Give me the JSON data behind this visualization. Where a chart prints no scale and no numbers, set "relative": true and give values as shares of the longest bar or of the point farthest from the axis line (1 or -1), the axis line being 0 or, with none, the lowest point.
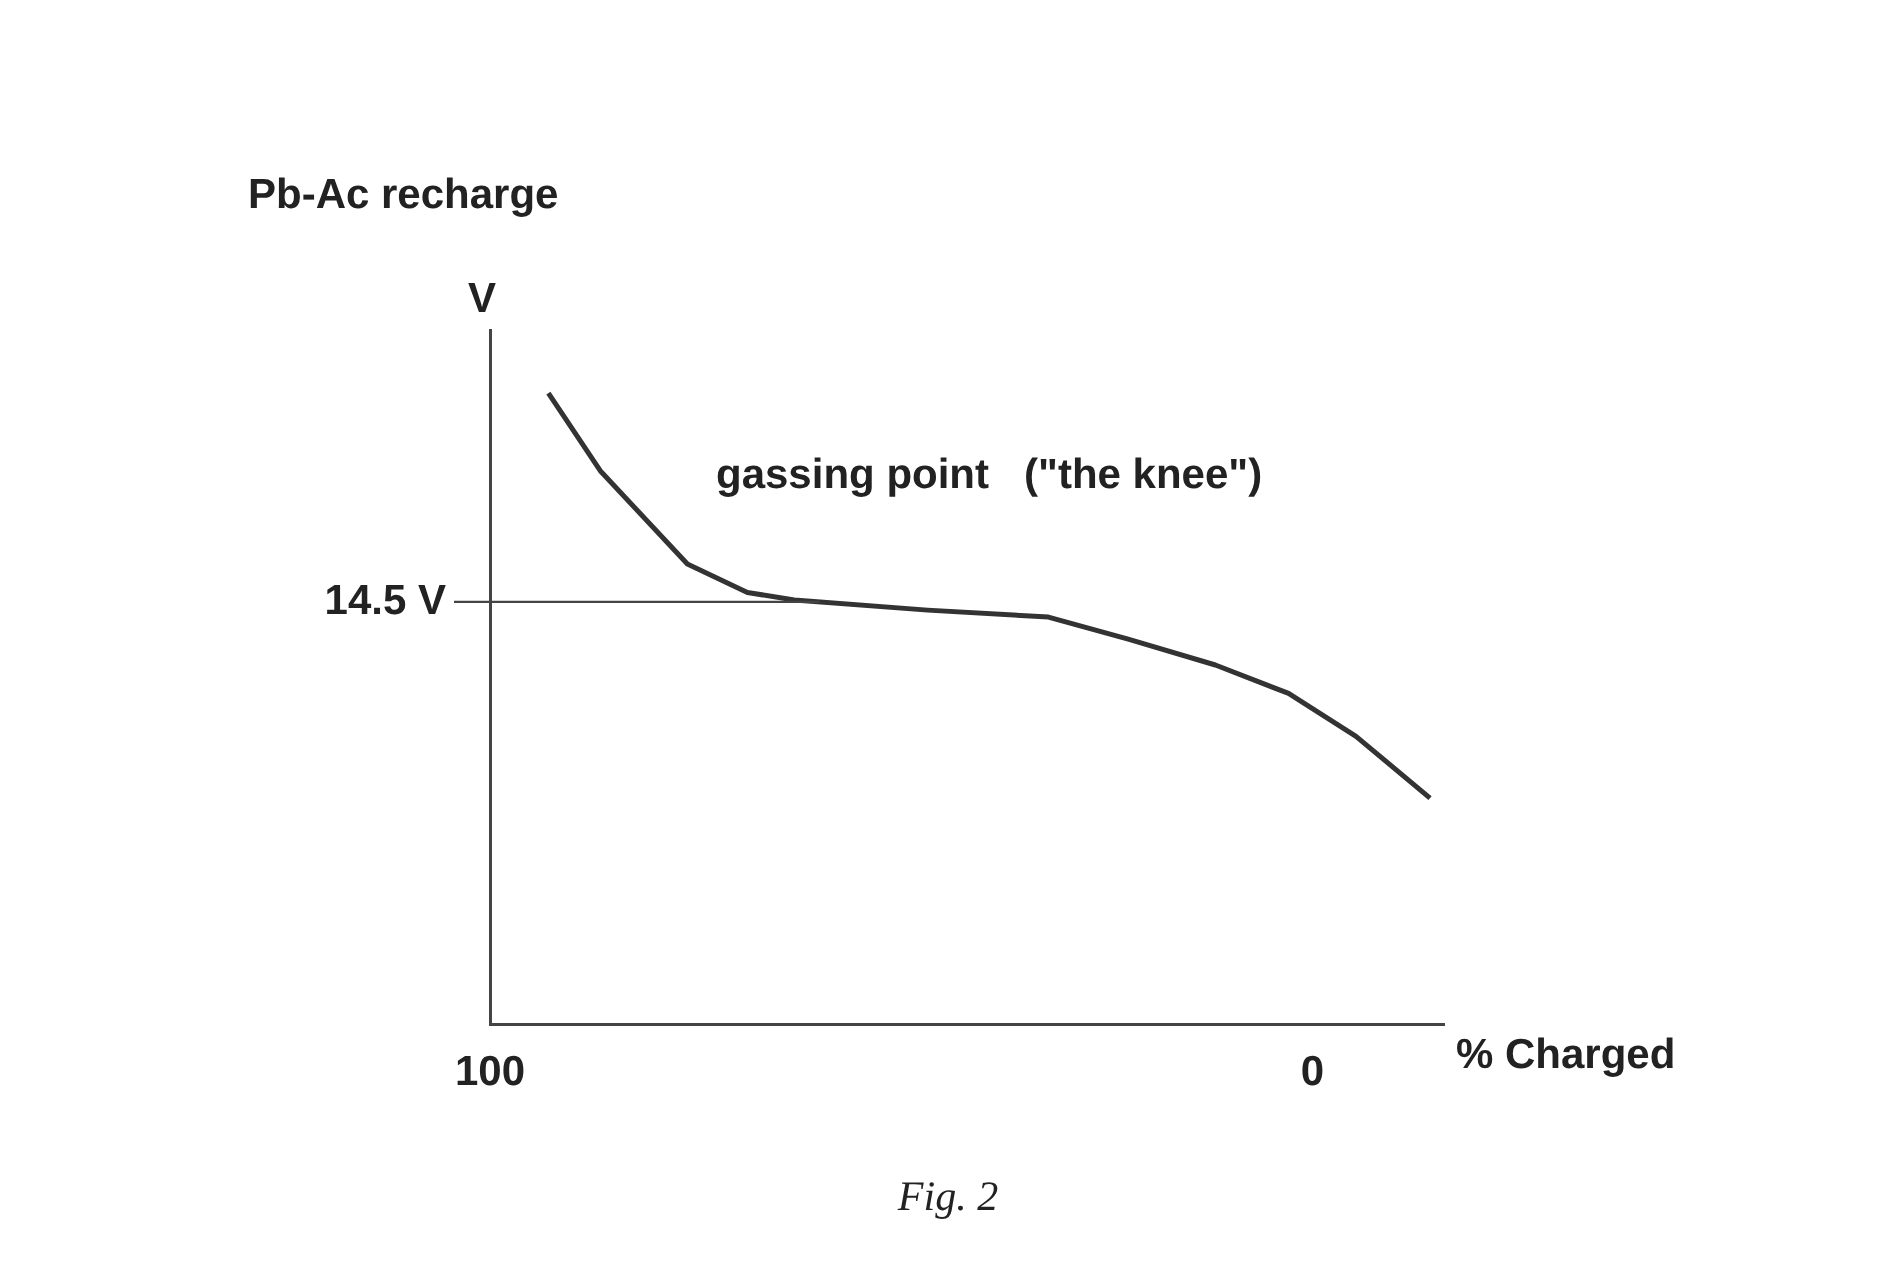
{
  "chart_data": {
    "type": "line",
    "title": "Pb-Ac recharge",
    "ylabel": "V",
    "xlabel": "% Charged",
    "relative": true,
    "x": [
      92.9,
      86.6,
      76,
      68.7,
      63,
      46.8,
      32.1,
      22.4,
      11.8,
      2.9,
      -5.3,
      -14.3
    ],
    "series": [
      {
        "color": "#333333",
        "values": [
          1,
          0.877,
          0.729,
          0.684,
          0.672,
          0.656,
          0.645,
          0.61,
          0.569,
          0.524,
          0.456,
          0.358
        ]
      }
    ],
    "xlim": [
      100,
      -16
    ],
    "xticks": [
      100,
      0
    ],
    "tick_labels": "x",
    "grid": false,
    "legend": false,
    "marker": "none",
    "line_style": "solid",
    "ref_lines": [
      {
        "axis": "y",
        "value": 0.669,
        "label": "14.5 V"
      }
    ],
    "annotations": [
      "gassing point   (\"the knee\")",
      "Fig. 2"
    ]
  }
}
